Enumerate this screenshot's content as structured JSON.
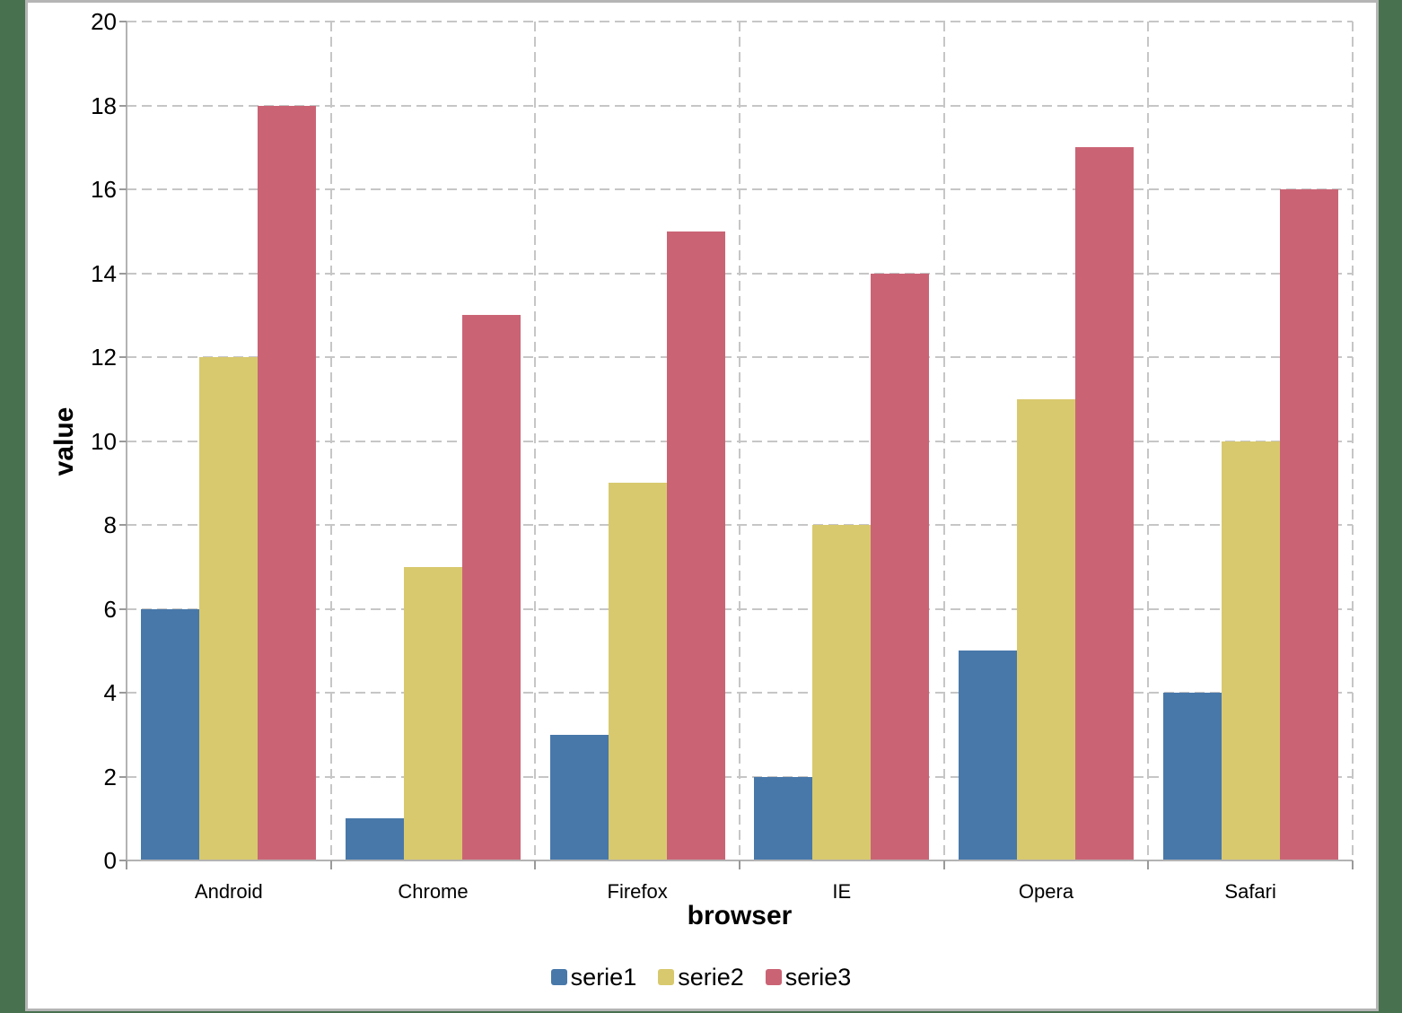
{
  "page": {
    "background_color": "#48714f",
    "panel_background": "#ffffff",
    "panel_border_color": "#b5b5b5"
  },
  "chart_data": {
    "type": "bar",
    "title": "",
    "xlabel": "browser",
    "ylabel": "value",
    "categories": [
      "Android",
      "Chrome",
      "Firefox",
      "IE",
      "Opera",
      "Safari"
    ],
    "series": [
      {
        "name": "serie1",
        "color": "#4878aa",
        "values": [
          6,
          1,
          3,
          2,
          5,
          4
        ]
      },
      {
        "name": "serie2",
        "color": "#d8c96e",
        "values": [
          12,
          7,
          9,
          8,
          11,
          10
        ]
      },
      {
        "name": "serie3",
        "color": "#ca6475",
        "values": [
          18,
          13,
          15,
          14,
          17,
          16
        ]
      }
    ],
    "ylim": [
      0,
      20
    ],
    "yticks": [
      0,
      2,
      4,
      6,
      8,
      10,
      12,
      14,
      16,
      18,
      20
    ],
    "grid": "dashed horizontal and vertical gridlines, gray",
    "legend_position": "bottom"
  }
}
